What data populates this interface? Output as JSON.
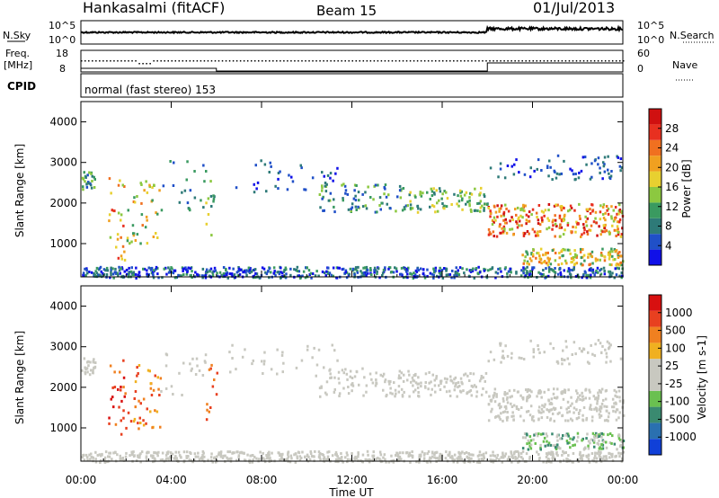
{
  "header": {
    "title": "Hankasalmi (fitACF)",
    "beam": "Beam 15",
    "date": "01/Jul/2013"
  },
  "side_labels": {
    "nsky": "N.Sky",
    "nsearch": "N.Search",
    "freq": "Freq.",
    "freq_unit": "[MHz]",
    "nave": "Nave",
    "cpid": "CPID"
  },
  "strip_ticks": {
    "nsky_left": [
      "10^5",
      "10^0"
    ],
    "nsky_right": [
      "10^5",
      "10^0"
    ],
    "freq_left": [
      "18",
      "8"
    ],
    "freq_right": [
      "60",
      "0"
    ]
  },
  "cpid_text": "normal (fast stereo) 153",
  "chart_data": [
    {
      "type": "heatmap",
      "name": "power",
      "ylabel": "Slant Range [km]",
      "xlabel": "",
      "xlim": [
        0,
        24
      ],
      "ylim": [
        180,
        4500
      ],
      "yticks": [
        1000,
        2000,
        3000,
        4000
      ],
      "colorbar": {
        "label": "Power [dB]",
        "min": 0,
        "max": 32,
        "ticks": [
          "4",
          "8",
          "12",
          "16",
          "20",
          "24",
          "28"
        ],
        "colors": [
          "#1010e8",
          "#2050c8",
          "#2e7a78",
          "#3a9a60",
          "#8cc840",
          "#e8d030",
          "#f0a020",
          "#f07020",
          "#e83020",
          "#d01010"
        ]
      }
    },
    {
      "type": "heatmap",
      "name": "velocity",
      "ylabel": "Slant Range [km]",
      "xlabel": "Time UT",
      "xlim": [
        0,
        24
      ],
      "ylim": [
        180,
        4500
      ],
      "yticks": [
        1000,
        2000,
        3000,
        4000
      ],
      "xticks": [
        "00:00",
        "04:00",
        "08:00",
        "12:00",
        "16:00",
        "20:00",
        "00:00"
      ],
      "colorbar": {
        "label": "Velocity [m s-1]",
        "ticks": [
          "1000",
          "500",
          "100",
          "25",
          "-25",
          "-100",
          "-500",
          "-1000"
        ],
        "colors": [
          "#1040d8",
          "#2a70b0",
          "#3a8a70",
          "#6ac050",
          "#c8c8c0",
          "#c8c8c0",
          "#f0b020",
          "#f08020",
          "#e84020",
          "#d81010"
        ]
      }
    }
  ]
}
